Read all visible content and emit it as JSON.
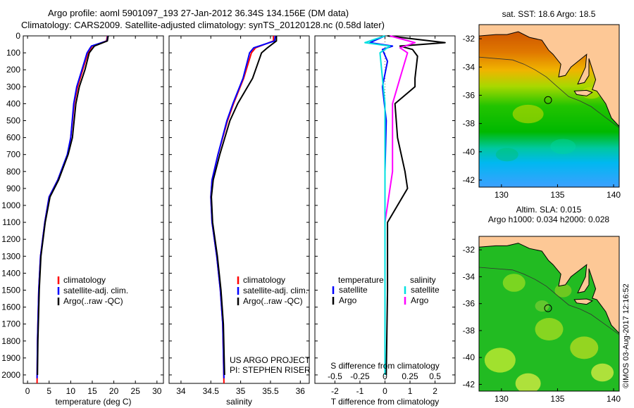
{
  "header": {
    "line1": "Argo profile: aoml 5901097_193 27-Jan-2012 36.34S 134.156E (DM data)",
    "line2": "Climatology: CARS2009. Satellite-adjusted climatology: synTS_20120128.nc (0.58d later)"
  },
  "colors": {
    "climatology": "#ff0000",
    "satellite": "#0000ff",
    "argo": "#000000",
    "sat_cyan": "#00e0e0",
    "argo_magenta": "#ff00ff",
    "land": "#fdc896"
  },
  "chart_data": [
    {
      "type": "line",
      "name": "temperature-profile",
      "xlabel": "temperature (deg C)",
      "ylabel": "",
      "xlim": [
        -1,
        31.5
      ],
      "ylim": [
        2050,
        0
      ],
      "xticks": [
        0,
        5,
        10,
        15,
        20,
        25,
        30
      ],
      "yticks": [
        0,
        100,
        200,
        300,
        400,
        500,
        600,
        700,
        800,
        900,
        1000,
        1100,
        1200,
        1300,
        1400,
        1500,
        1600,
        1700,
        1800,
        1900,
        2000
      ],
      "legend": [
        "climatology",
        "satellite-adj. clim.",
        "Argo(..raw -QC)"
      ],
      "legend_position": "lower-center",
      "series": [
        {
          "name": "climatology",
          "color": "#ff0000",
          "points": [
            [
              18.5,
              0
            ],
            [
              18.3,
              30
            ],
            [
              15.0,
              60
            ],
            [
              14.0,
              100
            ],
            [
              12.8,
              200
            ],
            [
              11.6,
              300
            ],
            [
              10.8,
              400
            ],
            [
              10.0,
              600
            ],
            [
              9.3,
              700
            ],
            [
              7.0,
              850
            ],
            [
              5.0,
              950
            ],
            [
              4.0,
              1100
            ],
            [
              3.0,
              1300
            ],
            [
              2.6,
              1500
            ],
            [
              2.3,
              1800
            ],
            [
              2.2,
              2050
            ]
          ]
        },
        {
          "name": "satellite-adj. clim.",
          "color": "#0000ff",
          "points": [
            [
              18.6,
              0
            ],
            [
              18.4,
              30
            ],
            [
              14.8,
              60
            ],
            [
              13.8,
              100
            ],
            [
              12.6,
              200
            ],
            [
              11.4,
              300
            ],
            [
              10.7,
              400
            ],
            [
              10.0,
              600
            ],
            [
              9.2,
              700
            ],
            [
              7.0,
              850
            ],
            [
              5.0,
              950
            ],
            [
              4.0,
              1100
            ],
            [
              3.0,
              1300
            ],
            [
              2.6,
              1500
            ],
            [
              2.3,
              1800
            ],
            [
              2.2,
              2020
            ]
          ]
        },
        {
          "name": "Argo(..raw -QC)",
          "color": "#000000",
          "points": [
            [
              18.7,
              0
            ],
            [
              18.5,
              30
            ],
            [
              15.5,
              60
            ],
            [
              14.3,
              100
            ],
            [
              13.3,
              200
            ],
            [
              12.0,
              300
            ],
            [
              11.2,
              400
            ],
            [
              10.4,
              600
            ],
            [
              9.4,
              700
            ],
            [
              7.2,
              850
            ],
            [
              5.2,
              950
            ],
            [
              4.1,
              1100
            ],
            [
              3.1,
              1300
            ],
            [
              2.7,
              1500
            ],
            [
              2.4,
              1800
            ],
            [
              2.3,
              2000
            ]
          ]
        }
      ]
    },
    {
      "type": "line",
      "name": "salinity-profile",
      "xlabel": "salinity",
      "xlim": [
        33.8,
        36.15
      ],
      "ylim": [
        2050,
        0
      ],
      "xticks": [
        34,
        34.5,
        35,
        35.5,
        36
      ],
      "legend": [
        "climatology",
        "satellite-adj. clim.",
        "Argo(..raw -QC)"
      ],
      "legend_position": "lower-center",
      "annotation": [
        "US ARGO PROJECT",
        "PI: STEPHEN RISER"
      ],
      "series": [
        {
          "name": "climatology",
          "color": "#ff0000",
          "points": [
            [
              35.55,
              0
            ],
            [
              35.55,
              30
            ],
            [
              35.25,
              70
            ],
            [
              35.18,
              100
            ],
            [
              35.05,
              250
            ],
            [
              34.88,
              400
            ],
            [
              34.78,
              500
            ],
            [
              34.62,
              700
            ],
            [
              34.52,
              850
            ],
            [
              34.5,
              950
            ],
            [
              34.52,
              1100
            ],
            [
              34.6,
              1300
            ],
            [
              34.66,
              1500
            ],
            [
              34.7,
              1700
            ],
            [
              34.72,
              2050
            ]
          ]
        },
        {
          "name": "satellite-adj. clim.",
          "color": "#0000ff",
          "points": [
            [
              35.58,
              0
            ],
            [
              35.57,
              30
            ],
            [
              35.22,
              70
            ],
            [
              35.15,
              100
            ],
            [
              35.04,
              250
            ],
            [
              34.87,
              400
            ],
            [
              34.77,
              500
            ],
            [
              34.62,
              700
            ],
            [
              34.52,
              850
            ],
            [
              34.5,
              950
            ],
            [
              34.52,
              1100
            ],
            [
              34.6,
              1300
            ],
            [
              34.66,
              1500
            ],
            [
              34.7,
              1700
            ],
            [
              34.72,
              2020
            ]
          ]
        },
        {
          "name": "Argo(..raw -QC)",
          "color": "#000000",
          "points": [
            [
              35.6,
              0
            ],
            [
              35.6,
              30
            ],
            [
              35.45,
              70
            ],
            [
              35.35,
              100
            ],
            [
              35.2,
              250
            ],
            [
              34.95,
              400
            ],
            [
              34.82,
              500
            ],
            [
              34.65,
              700
            ],
            [
              34.54,
              850
            ],
            [
              34.51,
              950
            ],
            [
              34.53,
              1100
            ],
            [
              34.61,
              1300
            ],
            [
              34.67,
              1500
            ],
            [
              34.71,
              1700
            ],
            [
              34.73,
              2000
            ]
          ]
        }
      ]
    },
    {
      "type": "line",
      "name": "difference-profile",
      "xlabel": "T difference from climatology",
      "xlabel_top": "S difference from climatology",
      "xlim": [
        -2.8,
        2.8
      ],
      "ylim": [
        2050,
        0
      ],
      "xticks": [
        -2,
        -1,
        0,
        1,
        2
      ],
      "s_xticks": [
        "-0.5",
        "-0.25",
        "0",
        "0.25",
        "0.5"
      ],
      "legend_titles": [
        "temperature",
        "salinity"
      ],
      "legend": [
        "satellite",
        "Argo",
        "satellite",
        "Argo"
      ],
      "series": [
        {
          "name": "satellite",
          "color": "#0000ff",
          "points": [
            [
              0,
              0
            ],
            [
              -0.6,
              40
            ],
            [
              0.3,
              60
            ],
            [
              -0.1,
              80
            ],
            [
              0.1,
              150
            ],
            [
              -0.1,
              300
            ],
            [
              0.05,
              500
            ],
            [
              0,
              800
            ],
            [
              0,
              1100
            ],
            [
              0,
              1500
            ],
            [
              0,
              2000
            ]
          ]
        },
        {
          "name": "Argo",
          "color": "#000000",
          "points": [
            [
              0.1,
              0
            ],
            [
              2.4,
              40
            ],
            [
              0.6,
              60
            ],
            [
              1.1,
              80
            ],
            [
              1.3,
              120
            ],
            [
              1.2,
              250
            ],
            [
              1.2,
              300
            ],
            [
              0.4,
              400
            ],
            [
              0.5,
              600
            ],
            [
              0.8,
              800
            ],
            [
              0.9,
              900
            ],
            [
              0.1,
              1100
            ],
            [
              0.1,
              1300
            ],
            [
              0.1,
              1500
            ],
            [
              0.05,
              2000
            ]
          ]
        },
        {
          "name": "satellite",
          "color": "#00e0e0",
          "points": [
            [
              0,
              0
            ],
            [
              -0.8,
              40
            ],
            [
              0.2,
              60
            ],
            [
              -0.2,
              100
            ],
            [
              -0.1,
              250
            ],
            [
              0,
              400
            ],
            [
              0,
              600
            ],
            [
              0,
              900
            ],
            [
              0,
              1200
            ],
            [
              0,
              1500
            ],
            [
              0,
              2000
            ]
          ]
        },
        {
          "name": "Argo",
          "color": "#ff00ff",
          "points": [
            [
              0.2,
              0
            ],
            [
              1.2,
              40
            ],
            [
              0.6,
              70
            ],
            [
              0.9,
              100
            ],
            [
              0.6,
              250
            ],
            [
              0.3,
              400
            ],
            [
              0.3,
              600
            ],
            [
              0.3,
              800
            ],
            [
              0.2,
              900
            ],
            [
              0,
              1100
            ],
            [
              0,
              1500
            ],
            [
              0,
              2000
            ]
          ]
        }
      ]
    },
    {
      "type": "heatmap",
      "name": "sst-map",
      "title": "sat. SST: 18.6  Argo: 18.5",
      "xlim": [
        128,
        140.5
      ],
      "ylim": [
        -42.5,
        -31
      ],
      "xticks": [
        130,
        135,
        140
      ],
      "yticks": [
        -32,
        -34,
        -36,
        -38,
        -40,
        -42
      ],
      "profile_location": [
        134.156,
        -36.34
      ]
    },
    {
      "type": "heatmap",
      "name": "sla-map",
      "title": "Altim. SLA: 0.015",
      "subtitle": "Argo h1000: 0.034 h2000: 0.028",
      "xlim": [
        128,
        140.5
      ],
      "ylim": [
        -42.5,
        -31
      ],
      "xticks": [
        130,
        135,
        140
      ],
      "yticks": [
        -32,
        -34,
        -36,
        -38,
        -40,
        -42
      ],
      "profile_location": [
        134.156,
        -36.34
      ]
    }
  ],
  "footer": {
    "stamp": "©IMOS 03-Aug-2017 12:16:52"
  }
}
